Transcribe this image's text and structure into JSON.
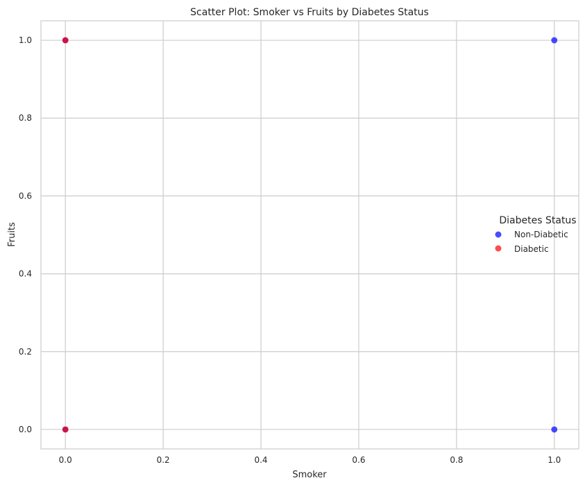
{
  "chart_data": {
    "type": "scatter",
    "title": "Scatter Plot: Smoker vs Fruits by Diabetes Status",
    "xlabel": "Smoker",
    "ylabel": "Fruits",
    "xlim": [
      -0.05,
      1.05
    ],
    "ylim": [
      -0.05,
      1.05
    ],
    "xticks": [
      0.0,
      0.2,
      0.4,
      0.6,
      0.8,
      1.0
    ],
    "xtick_labels": [
      "0.0",
      "0.2",
      "0.4",
      "0.6",
      "0.8",
      "1.0"
    ],
    "yticks": [
      0.0,
      0.2,
      0.4,
      0.6,
      0.8,
      1.0
    ],
    "ytick_labels": [
      "0.0",
      "0.2",
      "0.4",
      "0.6",
      "0.8",
      "1.0"
    ],
    "grid": true,
    "legend": {
      "title": "Diabetes Status",
      "placement": "center-right"
    },
    "series": [
      {
        "name": "Non-Diabetic",
        "color": "#0000ff",
        "points": [
          {
            "x": 0,
            "y": 0
          },
          {
            "x": 0,
            "y": 1
          },
          {
            "x": 1,
            "y": 0
          },
          {
            "x": 1,
            "y": 1
          }
        ]
      },
      {
        "name": "Diabetic",
        "color": "#ff0000",
        "points": [
          {
            "x": 0,
            "y": 0
          },
          {
            "x": 0,
            "y": 1
          }
        ]
      }
    ]
  }
}
